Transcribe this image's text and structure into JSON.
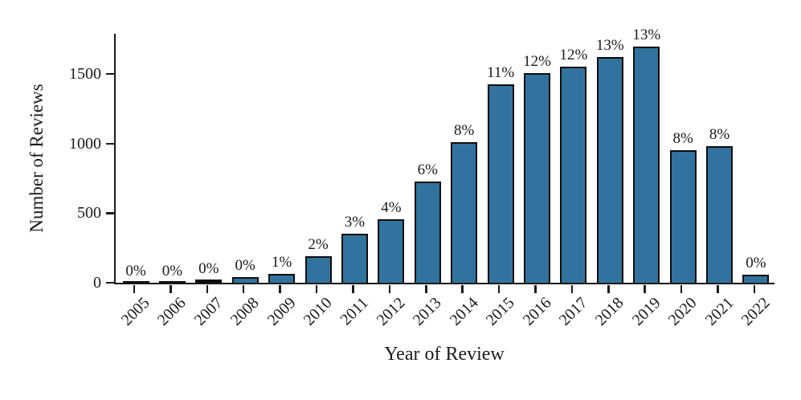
{
  "figure": {
    "background": "#ffffff",
    "bar_color": "#31739e",
    "bar_edge_color": "#0d0d0d",
    "axis_color": "#1a1a1a",
    "text_color": "#1a1a1a"
  },
  "chart_data": {
    "type": "bar",
    "title": "",
    "xlabel": "Year of Review",
    "ylabel": "Number of Reviews",
    "categories": [
      "2005",
      "2006",
      "2007",
      "2008",
      "2009",
      "2010",
      "2011",
      "2012",
      "2013",
      "2014",
      "2015",
      "2016",
      "2017",
      "2018",
      "2019",
      "2020",
      "2021",
      "2022"
    ],
    "values": [
      2,
      2,
      15,
      40,
      65,
      190,
      350,
      455,
      730,
      1010,
      1425,
      1510,
      1555,
      1620,
      1695,
      950,
      980,
      55
    ],
    "bar_labels": [
      "0%",
      "0%",
      "0%",
      "0%",
      "1%",
      "2%",
      "3%",
      "4%",
      "6%",
      "8%",
      "11%",
      "12%",
      "12%",
      "13%",
      "13%",
      "8%",
      "8%",
      "0%"
    ],
    "yticks": [
      0,
      500,
      1000,
      1500
    ],
    "ylim": [
      0,
      1790
    ],
    "grid": false,
    "legend_position": "none"
  }
}
